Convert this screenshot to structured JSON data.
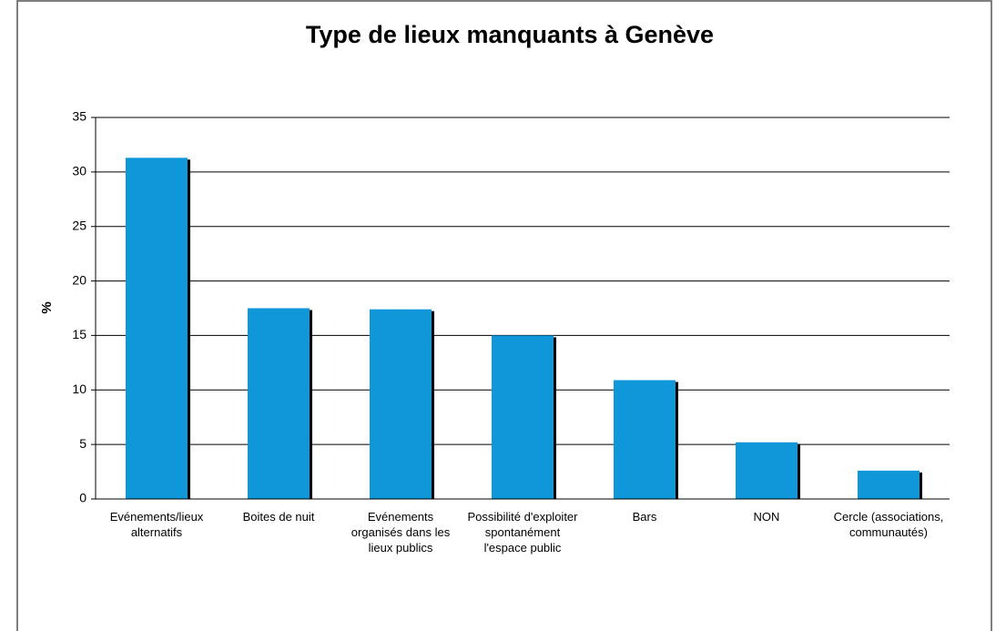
{
  "chart_data": {
    "type": "bar",
    "title": "Type de lieux manquants à Genève",
    "y_label": "%",
    "categories": [
      "Evénements/lieux alternatifs",
      "Boites de nuit",
      "Evénements organisés dans les lieux publics",
      "Possibilité d'exploiter spontanément l'espace public",
      "Bars",
      "NON",
      "Cercle (associations, communautés)"
    ],
    "values": [
      31.3,
      17.5,
      17.4,
      15.0,
      10.9,
      5.2,
      2.6
    ],
    "color": "#0f97d9",
    "ylim": [
      0,
      35
    ],
    "yticks": [
      0,
      5,
      10,
      15,
      20,
      25,
      30,
      35
    ],
    "grid": true
  }
}
